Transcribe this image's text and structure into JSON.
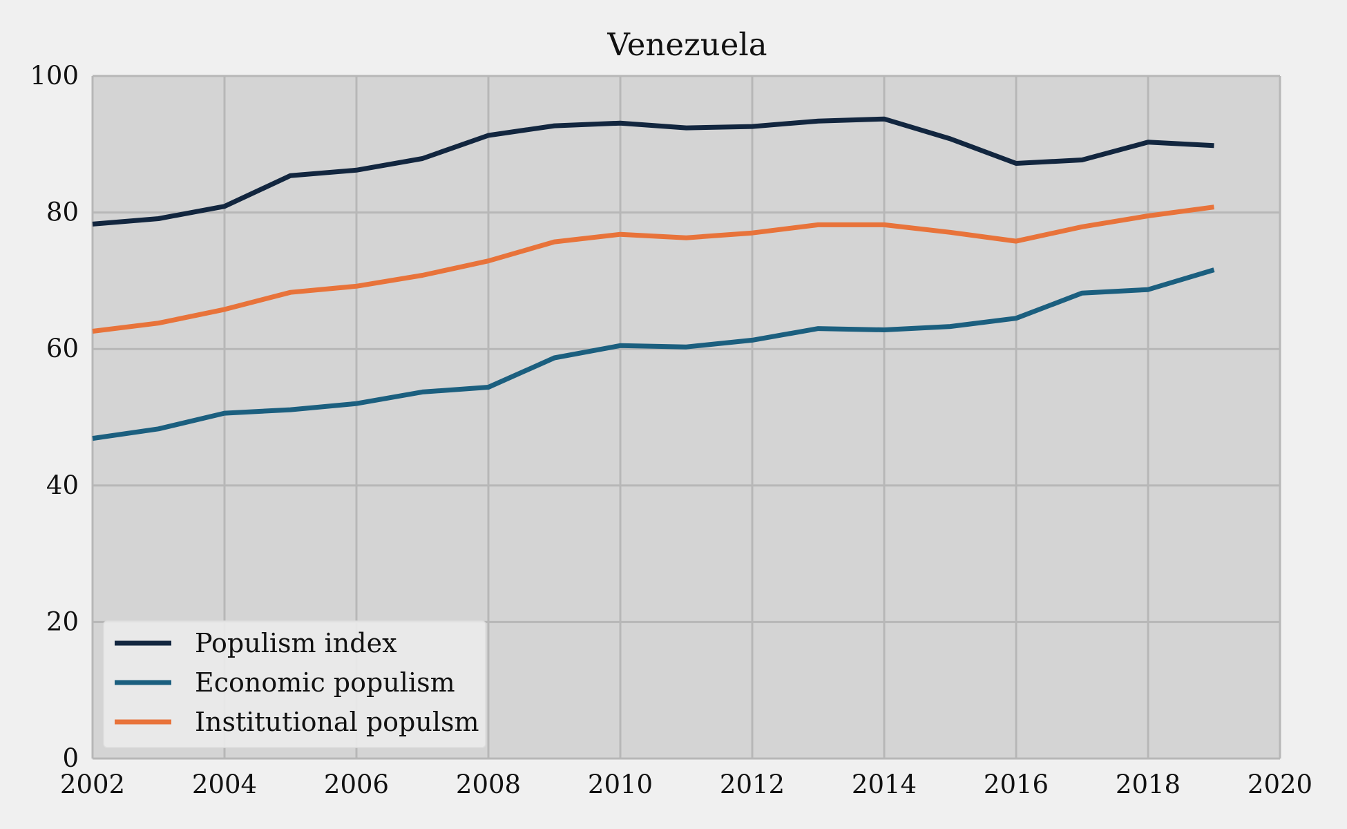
{
  "chart_data": {
    "type": "line",
    "title": "Venezuela",
    "xlabel": "",
    "ylabel": "",
    "xlim": [
      2002,
      2020
    ],
    "ylim": [
      0,
      100
    ],
    "x_ticks": [
      2002,
      2004,
      2006,
      2008,
      2010,
      2012,
      2014,
      2016,
      2018,
      2020
    ],
    "y_ticks": [
      0,
      20,
      40,
      60,
      80,
      100
    ],
    "grid": true,
    "legend_position": "lower-left",
    "x": [
      2002,
      2003,
      2004,
      2005,
      2006,
      2007,
      2008,
      2009,
      2010,
      2011,
      2012,
      2013,
      2014,
      2015,
      2016,
      2017,
      2018,
      2019
    ],
    "series": [
      {
        "name": "Populism index",
        "color": "#12263f",
        "values": [
          78.3,
          79.1,
          80.9,
          85.4,
          86.2,
          87.9,
          91.3,
          92.7,
          93.1,
          92.4,
          92.6,
          93.4,
          93.7,
          90.8,
          87.2,
          87.7,
          90.3,
          89.8
        ]
      },
      {
        "name": "Economic populism",
        "color": "#1b5f7f",
        "values": [
          46.9,
          48.3,
          50.6,
          51.1,
          52.0,
          53.7,
          54.4,
          58.7,
          60.5,
          60.3,
          61.3,
          63.0,
          62.8,
          63.3,
          64.5,
          68.2,
          68.7,
          71.6
        ]
      },
      {
        "name": "Institutional populsm",
        "color": "#e8733a",
        "values": [
          62.6,
          63.8,
          65.8,
          68.3,
          69.2,
          70.8,
          72.9,
          75.7,
          76.8,
          76.3,
          77.0,
          78.2,
          78.2,
          77.1,
          75.8,
          77.9,
          79.5,
          80.8
        ]
      }
    ]
  },
  "style": {
    "page_background": "#f0f0f0",
    "plot_background": "#d4d4d4",
    "grid_color": "#b7b7b7",
    "legend_background": "#ebebeb"
  }
}
